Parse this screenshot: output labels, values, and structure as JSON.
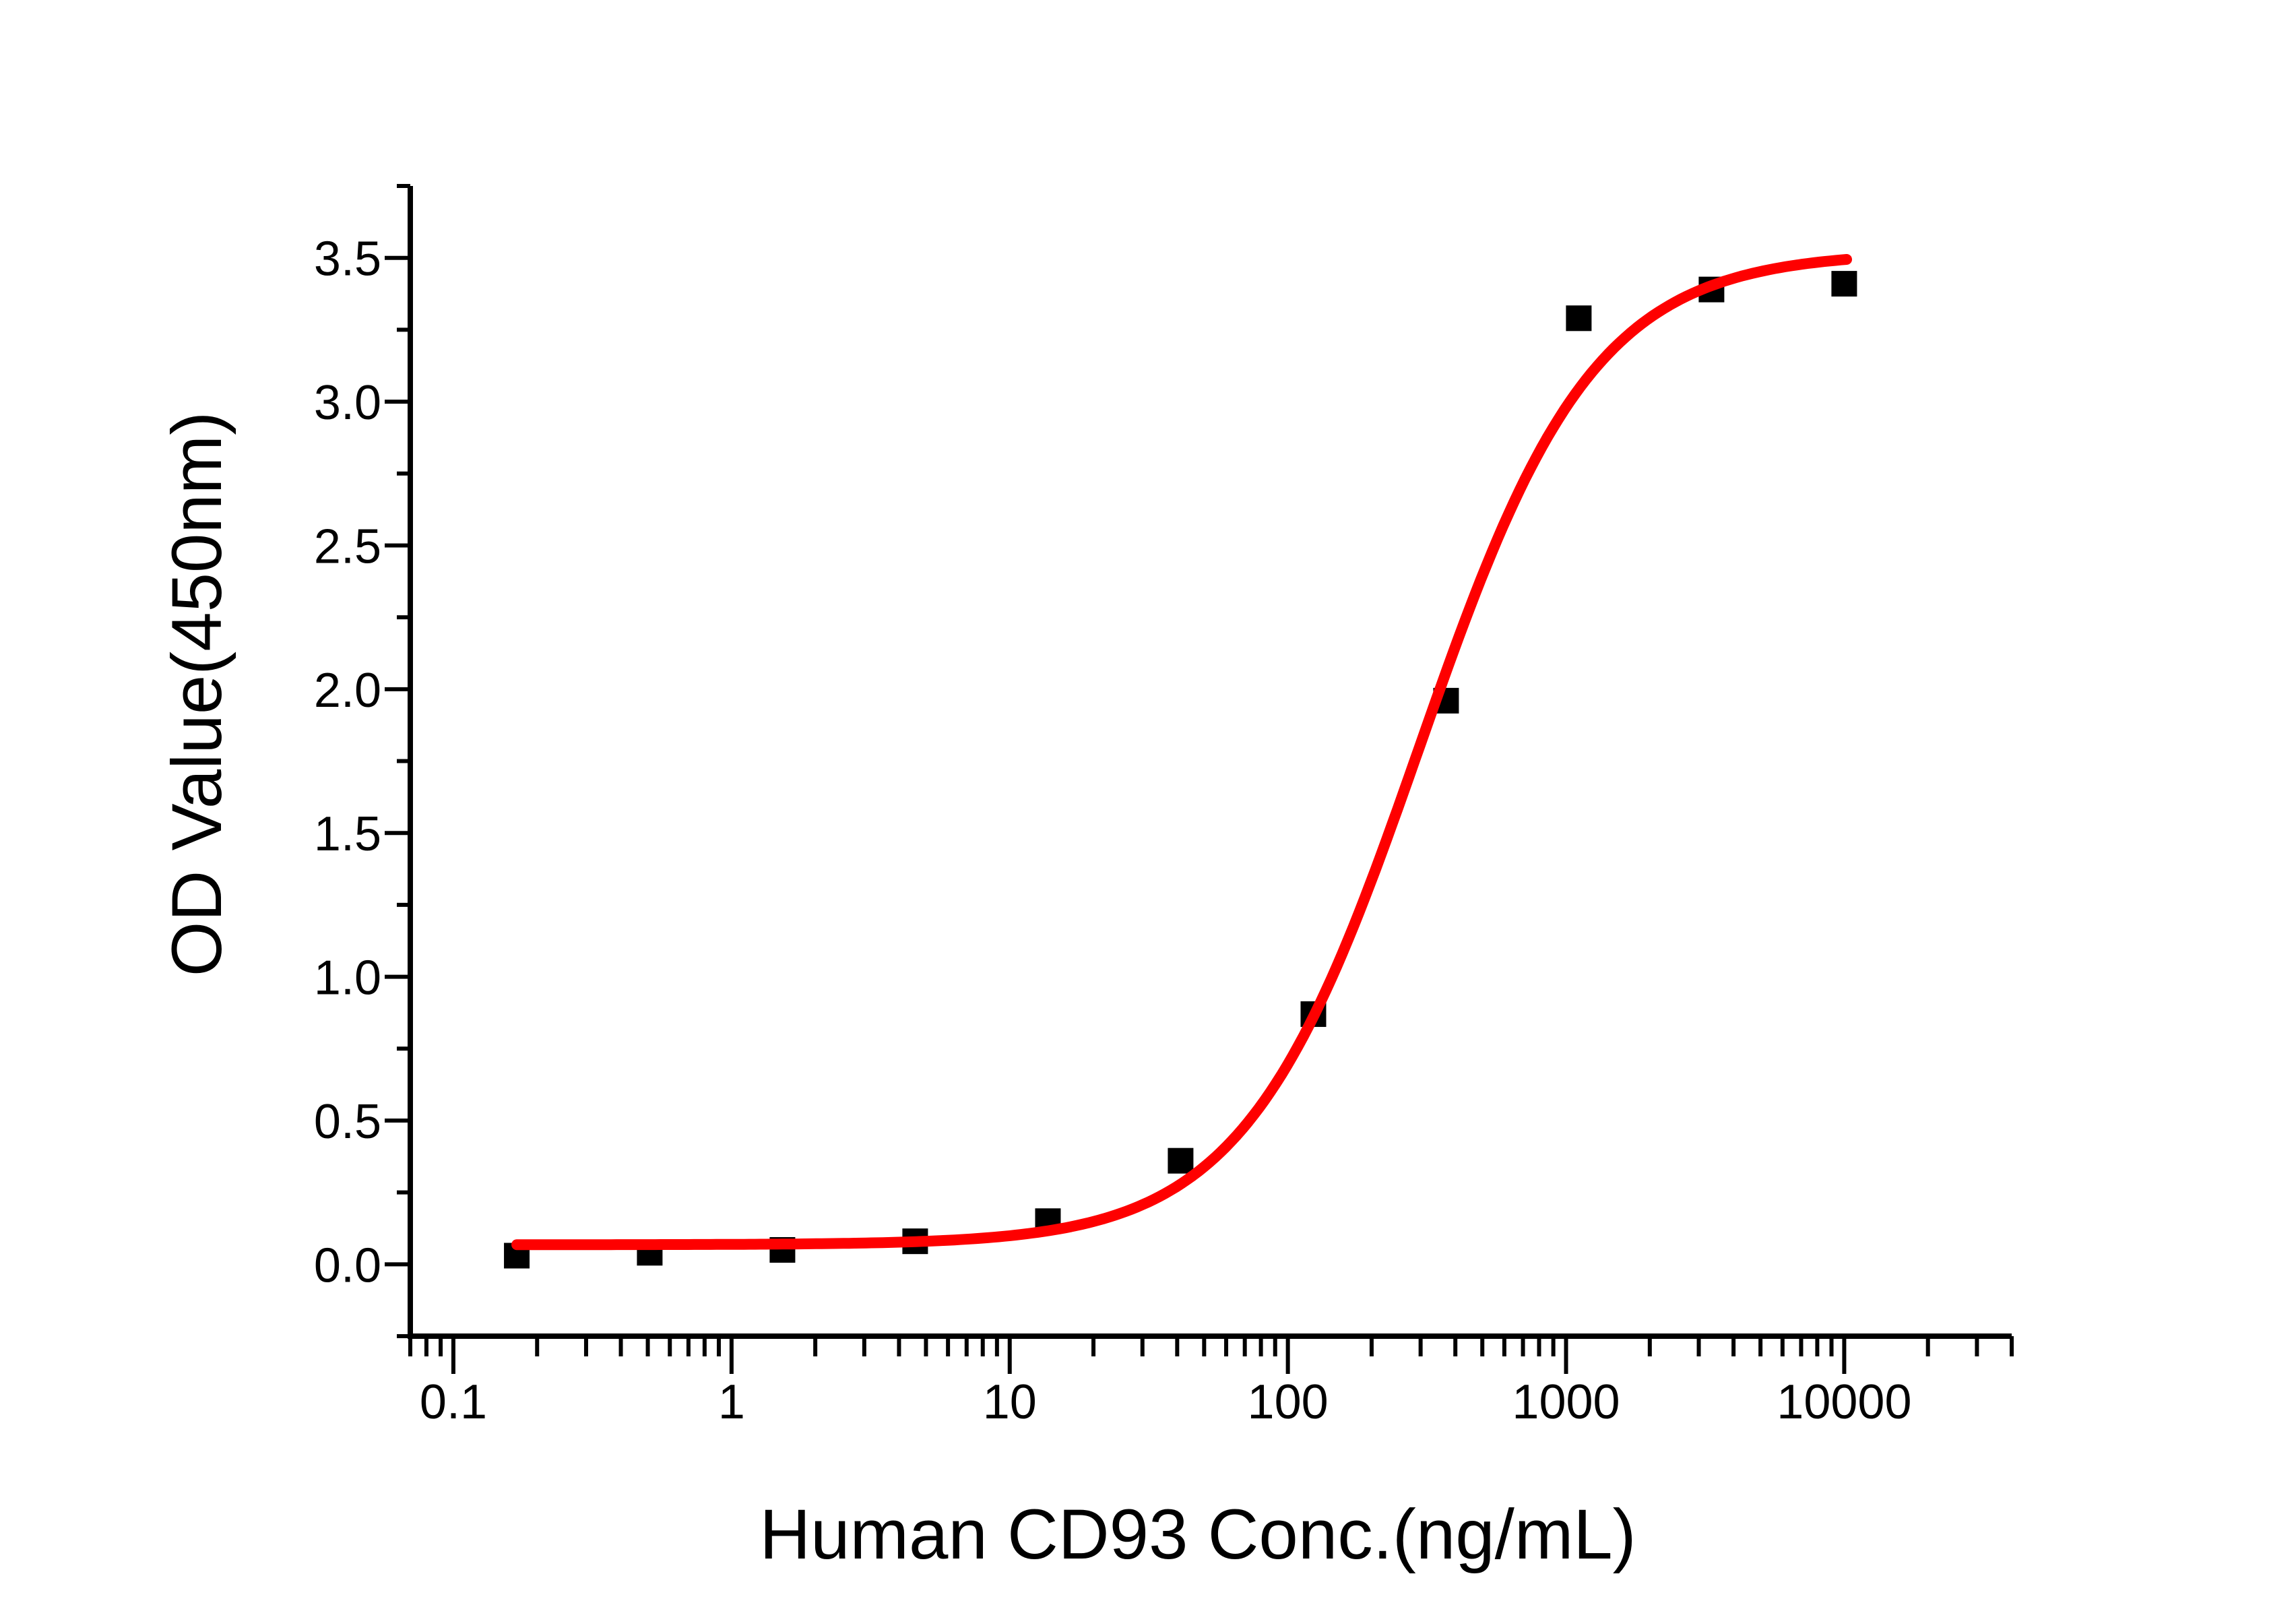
{
  "chart_data": {
    "type": "scatter",
    "title": "",
    "xlabel": "Human CD93 Conc.(ng/mL)",
    "ylabel": "OD Value(450nm)",
    "x_scale": "log",
    "y_scale": "linear",
    "xlim": [
      0.07,
      40000
    ],
    "ylim": [
      -0.25,
      3.75
    ],
    "x_ticks": [
      0.1,
      1,
      10,
      100,
      1000,
      10000
    ],
    "x_tick_labels": [
      "0.1",
      "1",
      "10",
      "100",
      "1000",
      "10000"
    ],
    "y_ticks": [
      0,
      0.5,
      1,
      1.5,
      2,
      2.5,
      3,
      3.5
    ],
    "y_tick_labels": [
      "0.0",
      "0.5",
      "1.0",
      "1.5",
      "2.0",
      "2.5",
      "3.0",
      "3.5"
    ],
    "grid": false,
    "legend": "none",
    "background": "#FFFFFF",
    "colors": {
      "axis": "#000000",
      "marker": "#000000",
      "curve": "#FE0000"
    },
    "series": [
      {
        "name": "OD measurements",
        "kind": "scatter",
        "marker": "square",
        "color": "#000000",
        "x": [
          0.169,
          0.508,
          1.524,
          4.572,
          13.72,
          41.15,
          123.5,
          370.4,
          1111,
          3333,
          10000
        ],
        "y": [
          0.03,
          0.04,
          0.05,
          0.08,
          0.15,
          0.36,
          0.87,
          1.96,
          3.29,
          3.39,
          3.41
        ]
      },
      {
        "name": "4PL fit curve",
        "kind": "line",
        "color": "#FE0000",
        "fit": {
          "model": "4PL",
          "bottom": 0.068,
          "top": 3.52,
          "ec50": 296,
          "hill": 1.385,
          "x_start": 0.169,
          "x_end": 10200
        }
      }
    ]
  }
}
